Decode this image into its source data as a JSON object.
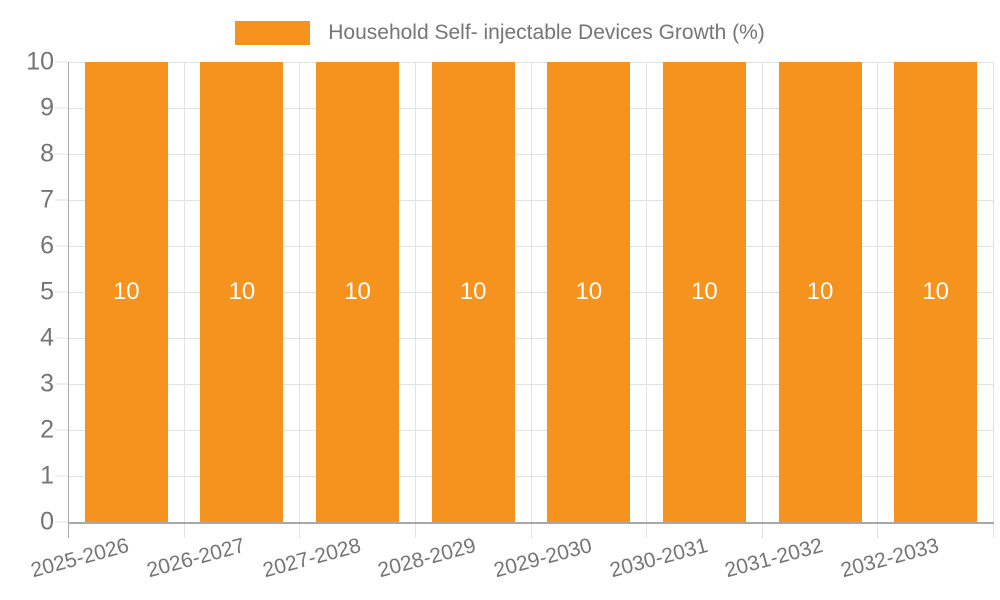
{
  "legend": {
    "label": "Household Self- injectable Devices Growth (%)",
    "swatch_color": "#F6921E"
  },
  "colors": {
    "bar": "#F6921E",
    "text": "#757575",
    "grid": "#E2E2E2",
    "axis": "#A8A8A8",
    "value_label": "#FFFFFF",
    "background": "#FFFFFF"
  },
  "chart_data": {
    "type": "bar",
    "title": "",
    "categories": [
      "2025-2026",
      "2026-2027",
      "2027-2028",
      "2028-2029",
      "2029-2030",
      "2030-2031",
      "2031-2032",
      "2032-2033"
    ],
    "series": [
      {
        "name": "Household Self- injectable Devices Growth (%)",
        "values": [
          10,
          10,
          10,
          10,
          10,
          10,
          10,
          10
        ]
      }
    ],
    "bar_value_labels": [
      "10",
      "10",
      "10",
      "10",
      "10",
      "10",
      "10",
      "10"
    ],
    "xlabel": "",
    "ylabel": "",
    "ylim": [
      0,
      10
    ],
    "yticks": [
      0,
      1,
      2,
      3,
      4,
      5,
      6,
      7,
      8,
      9,
      10
    ],
    "grid": true,
    "legend_position": "top-center"
  }
}
